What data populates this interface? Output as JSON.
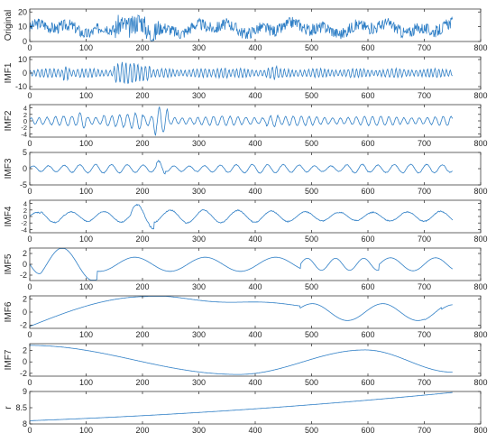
{
  "colors": {
    "line": "#2f7fc6",
    "axis": "#262626",
    "background": "#ffffff"
  },
  "chart_data": [
    {
      "type": "line",
      "ylabel": "Original",
      "xlim": [
        0,
        800
      ],
      "ylim": [
        0,
        22
      ],
      "yticks": [
        "0",
        "10",
        "20"
      ],
      "ytick_values": [
        0,
        10,
        20
      ],
      "xticks": [
        "0",
        "100",
        "200",
        "300",
        "400",
        "500",
        "600",
        "700",
        "800"
      ],
      "x_range": [
        0,
        750
      ],
      "signal": {
        "kind": "noisy",
        "base": 9,
        "amp": 4,
        "seed": 3,
        "burst": [
          [
            150,
            230,
            1.8
          ]
        ]
      }
    },
    {
      "type": "line",
      "ylabel": "IMF1",
      "xlim": [
        0,
        800
      ],
      "ylim": [
        -12,
        12
      ],
      "yticks": [
        "-10",
        "0",
        "10"
      ],
      "ytick_values": [
        -10,
        0,
        10
      ],
      "xticks": [
        "0",
        "100",
        "200",
        "300",
        "400",
        "500",
        "600",
        "700",
        "800"
      ],
      "x_range": [
        0,
        750
      ],
      "signal": {
        "kind": "osc",
        "period": 7,
        "amp": 3,
        "seed": 11,
        "burst": [
          [
            60,
            70,
            2.5
          ],
          [
            150,
            215,
            2.4
          ],
          [
            330,
            350,
            1.6
          ],
          [
            420,
            440,
            1.5
          ]
        ]
      }
    },
    {
      "type": "line",
      "ylabel": "IMF2",
      "xlim": [
        0,
        800
      ],
      "ylim": [
        -5,
        5
      ],
      "yticks": [
        "-4",
        "-2",
        "0",
        "2",
        "4"
      ],
      "ytick_values": [
        -4,
        -2,
        0,
        2,
        4
      ],
      "xticks": [
        "0",
        "100",
        "200",
        "300",
        "400",
        "500",
        "600",
        "700",
        "800"
      ],
      "x_range": [
        0,
        750
      ],
      "signal": {
        "kind": "osc",
        "period": 14,
        "amp": 1.3,
        "seed": 21,
        "burst": [
          [
            85,
            100,
            1.8
          ],
          [
            130,
            200,
            1.7
          ],
          [
            220,
            245,
            3.2
          ],
          [
            420,
            440,
            1.6
          ]
        ]
      }
    },
    {
      "type": "line",
      "ylabel": "IMF3",
      "xlim": [
        0,
        800
      ],
      "ylim": [
        -5,
        5
      ],
      "yticks": [
        "-5",
        "0",
        "5"
      ],
      "ytick_values": [
        -5,
        0,
        5
      ],
      "xticks": [
        "0",
        "100",
        "200",
        "300",
        "400",
        "500",
        "600",
        "700",
        "800"
      ],
      "x_range": [
        0,
        750
      ],
      "signal": {
        "kind": "osc",
        "period": 28,
        "amp": 1.2,
        "seed": 31,
        "burst": [
          [
            225,
            240,
            2.4
          ],
          [
            560,
            600,
            1.4
          ]
        ]
      }
    },
    {
      "type": "line",
      "ylabel": "IMF4",
      "xlim": [
        0,
        800
      ],
      "ylim": [
        -5,
        5
      ],
      "yticks": [
        "-4",
        "-2",
        "0",
        "2",
        "4"
      ],
      "ytick_values": [
        -4,
        -2,
        0,
        2,
        4
      ],
      "xticks": [
        "0",
        "100",
        "200",
        "300",
        "400",
        "500",
        "600",
        "700",
        "800"
      ],
      "x_range": [
        0,
        750
      ],
      "signal": {
        "kind": "osc",
        "period": 60,
        "amp": 1.8,
        "seed": 41,
        "burst": [
          [
            180,
            220,
            2.0
          ],
          [
            20,
            60,
            1.4
          ]
        ]
      }
    },
    {
      "type": "line",
      "ylabel": "IMF5",
      "xlim": [
        0,
        800
      ],
      "ylim": [
        -3,
        3
      ],
      "yticks": [
        "-2",
        "0",
        "2"
      ],
      "ytick_values": [
        -2,
        0,
        2
      ],
      "xticks": [
        "0",
        "100",
        "200",
        "300",
        "400",
        "500",
        "600",
        "700",
        "800"
      ],
      "x_range": [
        0,
        750
      ],
      "signal": {
        "kind": "imf5"
      }
    },
    {
      "type": "line",
      "ylabel": "IMF6",
      "xlim": [
        0,
        800
      ],
      "ylim": [
        -2.5,
        2.5
      ],
      "yticks": [
        "-2",
        "0",
        "2"
      ],
      "ytick_values": [
        -2,
        0,
        2
      ],
      "xticks": [
        "0",
        "100",
        "200",
        "300",
        "400",
        "500",
        "600",
        "700",
        "800"
      ],
      "x_range": [
        0,
        750
      ],
      "signal": {
        "kind": "imf6"
      }
    },
    {
      "type": "line",
      "ylabel": "IMF7",
      "xlim": [
        0,
        800
      ],
      "ylim": [
        -2.5,
        3.2
      ],
      "yticks": [
        "-2",
        "0",
        "2"
      ],
      "ytick_values": [
        -2,
        0,
        2
      ],
      "xticks": [
        "0",
        "100",
        "200",
        "300",
        "400",
        "500",
        "600",
        "700",
        "800"
      ],
      "x_range": [
        0,
        750
      ],
      "signal": {
        "kind": "imf7"
      }
    },
    {
      "type": "line",
      "ylabel": "r",
      "xlim": [
        0,
        800
      ],
      "ylim": [
        8,
        9
      ],
      "yticks": [
        "8",
        "8.5",
        "9"
      ],
      "ytick_values": [
        8,
        8.5,
        9
      ],
      "xticks": [
        "0",
        "100",
        "200",
        "300",
        "400",
        "500",
        "600",
        "700",
        "800"
      ],
      "x_range": [
        0,
        750
      ],
      "signal": {
        "kind": "residual",
        "start": 8.1,
        "end": 8.97
      }
    }
  ]
}
